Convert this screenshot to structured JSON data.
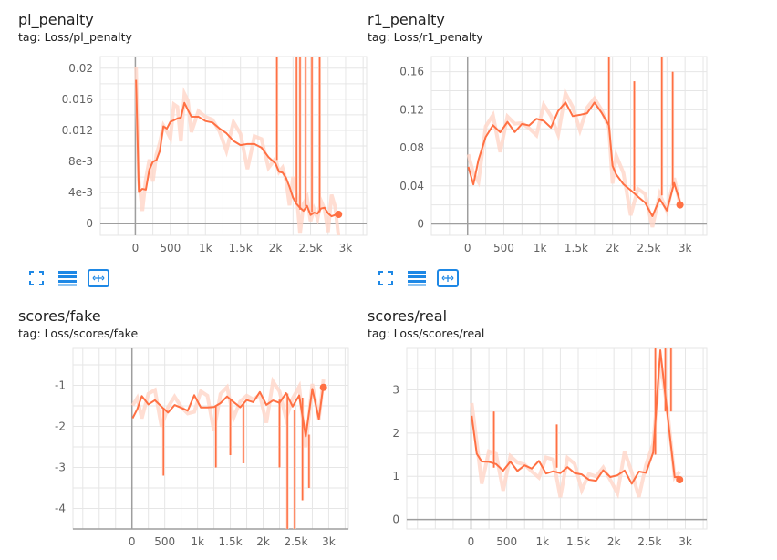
{
  "colors": {
    "line": "#ff7043",
    "line_light": "#ffd6c8",
    "grid": "#e6e6e6",
    "axis": "#9e9e9e",
    "zero_axis": "#9e9e9e",
    "tick_text": "#616161",
    "toolbar_icon": "#1e88e5"
  },
  "toolbar": {
    "icons": [
      "expand-icon",
      "data-table-icon",
      "fit-domain-icon"
    ]
  },
  "cards": [
    {
      "title": "pl_penalty",
      "tag": "tag: Loss/pl_penalty"
    },
    {
      "title": "r1_penalty",
      "tag": "tag: Loss/r1_penalty"
    },
    {
      "title": "scores/fake",
      "tag": "tag: Loss/scores/fake"
    },
    {
      "title": "scores/real",
      "tag": "tag: Loss/scores/real"
    }
  ],
  "chart_data": [
    {
      "type": "line",
      "xlim": [
        -500,
        3300
      ],
      "ylim": [
        -0.0015,
        0.0215
      ],
      "xticks": [
        0,
        500,
        1000,
        1500,
        2000,
        2500,
        3000
      ],
      "xtick_labels": [
        "0",
        "500",
        "1k",
        "1.5k",
        "2k",
        "2.5k",
        "3k"
      ],
      "yticks": [
        0,
        0.004,
        0.008,
        0.012,
        0.016,
        0.02
      ],
      "ytick_labels": [
        "0",
        "4e-3",
        "8e-3",
        "0.012",
        "0.016",
        "0.02"
      ],
      "grid": true,
      "x": [
        10,
        50,
        100,
        150,
        200,
        250,
        300,
        350,
        400,
        450,
        500,
        550,
        600,
        650,
        700,
        750,
        800,
        900,
        1000,
        1100,
        1200,
        1300,
        1400,
        1500,
        1600,
        1700,
        1800,
        1900,
        2000,
        2050,
        2100,
        2150,
        2200,
        2250,
        2300,
        2350,
        2400,
        2450,
        2500,
        2550,
        2600,
        2650,
        2700,
        2750,
        2800,
        2850,
        2900
      ],
      "values": [
        0.0185,
        0.0045,
        0.0048,
        0.0042,
        0.0065,
        0.0078,
        0.0085,
        0.0098,
        0.0125,
        0.0118,
        0.0128,
        0.0135,
        0.014,
        0.0138,
        0.0152,
        0.0142,
        0.0138,
        0.0142,
        0.0135,
        0.0128,
        0.0118,
        0.0115,
        0.011,
        0.0105,
        0.0102,
        0.0098,
        0.0095,
        0.0088,
        0.0082,
        0.0068,
        0.0062,
        0.0055,
        0.0048,
        0.0038,
        0.0028,
        0.0018,
        0.0012,
        0.0022,
        0.0015,
        0.0018,
        0.0012,
        0.0015,
        0.0018,
        0.0016,
        0.0014,
        0.0012,
        0.0012
      ],
      "spikes": [
        [
          2020,
          0.0215
        ],
        [
          2300,
          0.0215
        ],
        [
          2350,
          0.0215
        ],
        [
          2430,
          0.0215
        ],
        [
          2520,
          0.0215
        ],
        [
          2630,
          0.0215
        ]
      ]
    },
    {
      "type": "line",
      "xlim": [
        -500,
        3300
      ],
      "ylim": [
        -0.012,
        0.176
      ],
      "xticks": [
        0,
        500,
        1000,
        1500,
        2000,
        2500,
        3000
      ],
      "xtick_labels": [
        "0",
        "500",
        "1k",
        "1.5k",
        "2k",
        "2.5k",
        "3k"
      ],
      "yticks": [
        0,
        0.04,
        0.08,
        0.12,
        0.16
      ],
      "ytick_labels": [
        "0",
        "0.04",
        "0.08",
        "0.12",
        "0.16"
      ],
      "grid": true,
      "x": [
        10,
        80,
        150,
        250,
        350,
        450,
        550,
        650,
        750,
        850,
        950,
        1050,
        1150,
        1250,
        1350,
        1450,
        1550,
        1650,
        1750,
        1850,
        1950,
        2000,
        2050,
        2150,
        2250,
        2350,
        2450,
        2550,
        2650,
        2750,
        2850,
        2930
      ],
      "values": [
        0.06,
        0.045,
        0.07,
        0.09,
        0.1,
        0.095,
        0.11,
        0.1,
        0.105,
        0.1,
        0.108,
        0.11,
        0.105,
        0.12,
        0.125,
        0.11,
        0.115,
        0.12,
        0.13,
        0.115,
        0.1,
        0.06,
        0.055,
        0.045,
        0.035,
        0.025,
        0.02,
        0.01,
        0.03,
        0.015,
        0.04,
        0.02
      ],
      "spikes": [
        [
          1950,
          0.176
        ],
        [
          2300,
          0.15
        ],
        [
          2680,
          0.176
        ],
        [
          2830,
          0.16
        ]
      ]
    },
    {
      "type": "line",
      "xlim": [
        -900,
        3300
      ],
      "ylim": [
        -4.5,
        -0.1
      ],
      "xticks": [
        0,
        500,
        1000,
        1500,
        2000,
        2500,
        3000
      ],
      "xtick_labels": [
        "0",
        "500",
        "1k",
        "1.5k",
        "2k",
        "2.5k",
        "3k"
      ],
      "yticks": [
        -4,
        -3,
        -2,
        -1
      ],
      "ytick_labels": [
        "-4",
        "-3",
        "-2",
        "-1"
      ],
      "grid": true,
      "x": [
        10,
        80,
        150,
        250,
        350,
        450,
        550,
        650,
        750,
        850,
        950,
        1050,
        1150,
        1250,
        1350,
        1450,
        1550,
        1650,
        1750,
        1850,
        1950,
        2050,
        2150,
        2250,
        2350,
        2450,
        2550,
        2650,
        2750,
        2850,
        2920
      ],
      "values": [
        -1.8,
        -1.5,
        -1.2,
        -1.5,
        -1.45,
        -1.55,
        -1.6,
        -1.4,
        -1.55,
        -1.7,
        -1.3,
        -1.5,
        -1.45,
        -1.5,
        -1.5,
        -1.35,
        -1.4,
        -1.45,
        -1.3,
        -1.45,
        -1.25,
        -1.5,
        -1.3,
        -1.35,
        -1.2,
        -1.6,
        -1.3,
        -2.2,
        -1.0,
        -1.8,
        -1.05
      ],
      "spikes": [
        [
          480,
          -3.2
        ],
        [
          1280,
          -3.0
        ],
        [
          1500,
          -2.7
        ],
        [
          1700,
          -2.9
        ],
        [
          2250,
          -3.0
        ],
        [
          2370,
          -4.5
        ],
        [
          2480,
          -4.5
        ],
        [
          2600,
          -3.8
        ],
        [
          2700,
          -3.5
        ]
      ]
    },
    {
      "type": "line",
      "xlim": [
        -900,
        3300
      ],
      "ylim": [
        -0.22,
        3.96
      ],
      "xticks": [
        0,
        500,
        1000,
        1500,
        2000,
        2500,
        3000
      ],
      "xtick_labels": [
        "0",
        "500",
        "1k",
        "1.5k",
        "2k",
        "2.5k",
        "3k"
      ],
      "yticks": [
        0,
        1,
        2,
        3
      ],
      "ytick_labels": [
        "0",
        "1",
        "2",
        "3"
      ],
      "grid": true,
      "x": [
        10,
        80,
        150,
        250,
        350,
        450,
        550,
        650,
        750,
        850,
        950,
        1050,
        1150,
        1250,
        1350,
        1450,
        1550,
        1650,
        1750,
        1850,
        1950,
        2050,
        2150,
        2250,
        2350,
        2450,
        2550,
        2650,
        2750,
        2850,
        2920
      ],
      "values": [
        2.4,
        1.6,
        1.4,
        1.3,
        1.2,
        1.1,
        1.4,
        1.2,
        1.25,
        1.1,
        1.3,
        1.1,
        1.2,
        1.1,
        1.15,
        1.0,
        1.05,
        1.0,
        0.95,
        1.1,
        0.9,
        1.0,
        1.2,
        0.9,
        1.1,
        1.0,
        1.5,
        3.96,
        2.5,
        1.0,
        0.92
      ],
      "spikes": [
        [
          320,
          2.5
        ],
        [
          1200,
          2.2
        ],
        [
          2580,
          3.96
        ],
        [
          2720,
          3.96
        ],
        [
          2800,
          3.96
        ]
      ]
    }
  ]
}
